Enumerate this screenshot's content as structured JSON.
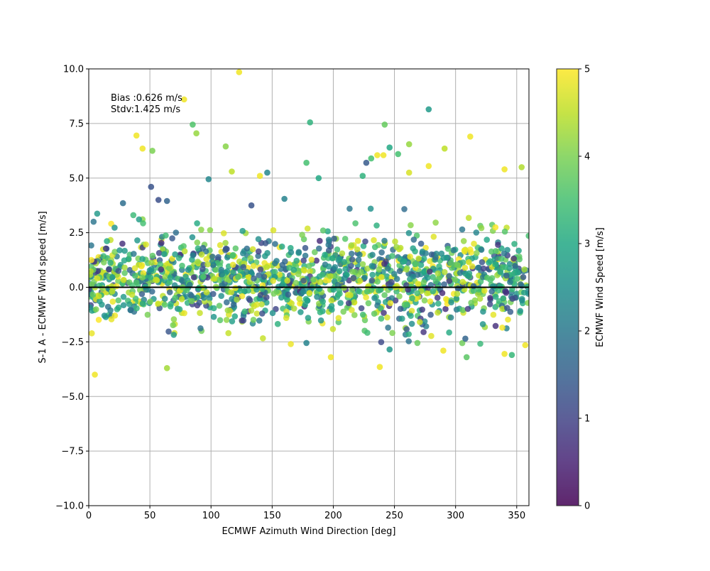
{
  "chart_data": {
    "type": "scatter",
    "title": "",
    "xlabel": "ECMWF Azimuth Wind Direction [deg]",
    "ylabel": "S-1 A - ECMWF Wind speed [m/s]",
    "xlim": [
      0,
      360
    ],
    "ylim": [
      -10,
      10
    ],
    "xticks": [
      0,
      50,
      100,
      150,
      200,
      250,
      300,
      350
    ],
    "yticks": [
      -10.0,
      -7.5,
      -5.0,
      -2.5,
      0.0,
      2.5,
      5.0,
      7.5,
      10.0
    ],
    "xtick_labels": [
      "0",
      "50",
      "100",
      "150",
      "200",
      "250",
      "300",
      "350"
    ],
    "ytick_labels": [
      "−10.0",
      "−7.5",
      "−5.0",
      "−2.5",
      "0.0",
      "2.5",
      "5.0",
      "7.5",
      "10.0"
    ],
    "grid": true,
    "zero_line": 0,
    "annotations": [
      "Bias :0.626 m/s",
      "Stdv:1.425 m/s"
    ],
    "colorbar": {
      "label": "ECMWF Wind Speed [m/s]",
      "min": 0,
      "max": 5,
      "ticks": [
        0,
        1,
        2,
        3,
        4,
        5
      ],
      "tick_labels": [
        "0",
        "1",
        "2",
        "3",
        "4",
        "5"
      ],
      "colormap": "viridis"
    },
    "notable_points": [
      {
        "x": 123,
        "y": 9.85,
        "c": 4.9
      },
      {
        "x": 78,
        "y": 8.6,
        "c": 4.9
      },
      {
        "x": 85,
        "y": 7.45,
        "c": 3.6
      },
      {
        "x": 181,
        "y": 7.55,
        "c": 3.2
      },
      {
        "x": 278,
        "y": 8.15,
        "c": 2.7
      },
      {
        "x": 242,
        "y": 7.45,
        "c": 3.8
      },
      {
        "x": 39,
        "y": 6.95,
        "c": 4.9
      },
      {
        "x": 88,
        "y": 7.05,
        "c": 4.2
      },
      {
        "x": 112,
        "y": 6.45,
        "c": 4.1
      },
      {
        "x": 312,
        "y": 6.9,
        "c": 4.9
      },
      {
        "x": 44,
        "y": 6.35,
        "c": 4.9
      },
      {
        "x": 52,
        "y": 6.25,
        "c": 4.0
      },
      {
        "x": 262,
        "y": 6.55,
        "c": 4.2
      },
      {
        "x": 291,
        "y": 6.35,
        "c": 4.5
      },
      {
        "x": 246,
        "y": 6.4,
        "c": 3.0
      },
      {
        "x": 253,
        "y": 6.1,
        "c": 3.5
      },
      {
        "x": 236,
        "y": 6.05,
        "c": 4.9
      },
      {
        "x": 241,
        "y": 6.05,
        "c": 4.9
      },
      {
        "x": 231,
        "y": 5.9,
        "c": 3.5
      },
      {
        "x": 227,
        "y": 5.7,
        "c": 1.4
      },
      {
        "x": 178,
        "y": 5.7,
        "c": 3.5
      },
      {
        "x": 278,
        "y": 5.55,
        "c": 4.9
      },
      {
        "x": 354,
        "y": 5.5,
        "c": 4.4
      },
      {
        "x": 340,
        "y": 5.4,
        "c": 4.9
      },
      {
        "x": 117,
        "y": 5.3,
        "c": 4.5
      },
      {
        "x": 262,
        "y": 5.25,
        "c": 4.7
      },
      {
        "x": 146,
        "y": 5.25,
        "c": 2.3
      },
      {
        "x": 140,
        "y": 5.1,
        "c": 4.9
      },
      {
        "x": 224,
        "y": 5.1,
        "c": 3.2
      },
      {
        "x": 188,
        "y": 5.0,
        "c": 3.0
      },
      {
        "x": 98,
        "y": 4.95,
        "c": 2.3
      },
      {
        "x": 51,
        "y": 4.6,
        "c": 1.3
      },
      {
        "x": 160,
        "y": 4.05,
        "c": 2.2
      },
      {
        "x": 57,
        "y": 4.0,
        "c": 1.2
      },
      {
        "x": 64,
        "y": 3.95,
        "c": 1.6
      },
      {
        "x": 28,
        "y": 3.85,
        "c": 1.8
      },
      {
        "x": 133,
        "y": 3.75,
        "c": 1.3
      },
      {
        "x": 5,
        "y": -4.0,
        "c": 4.9
      },
      {
        "x": 64,
        "y": -3.7,
        "c": 4.3
      },
      {
        "x": 238,
        "y": -3.65,
        "c": 4.9
      },
      {
        "x": 198,
        "y": -3.2,
        "c": 4.9
      },
      {
        "x": 309,
        "y": -3.2,
        "c": 3.7
      },
      {
        "x": 346,
        "y": -3.1,
        "c": 3.3
      },
      {
        "x": 340,
        "y": -3.05,
        "c": 4.9
      },
      {
        "x": 290,
        "y": -2.9,
        "c": 4.9
      },
      {
        "x": 246,
        "y": -2.85,
        "c": 2.6
      },
      {
        "x": 357,
        "y": -2.65,
        "c": 4.9
      },
      {
        "x": 308,
        "y": -2.35,
        "c": 1.6
      },
      {
        "x": 178,
        "y": -2.55,
        "c": 2.2
      }
    ],
    "bulk_distribution": {
      "n_points": 1500,
      "y_mean": 0.626,
      "y_stdv": 1.425,
      "y_range_typical": [
        -2.5,
        3.5
      ],
      "color_range": [
        0.5,
        5
      ]
    }
  }
}
